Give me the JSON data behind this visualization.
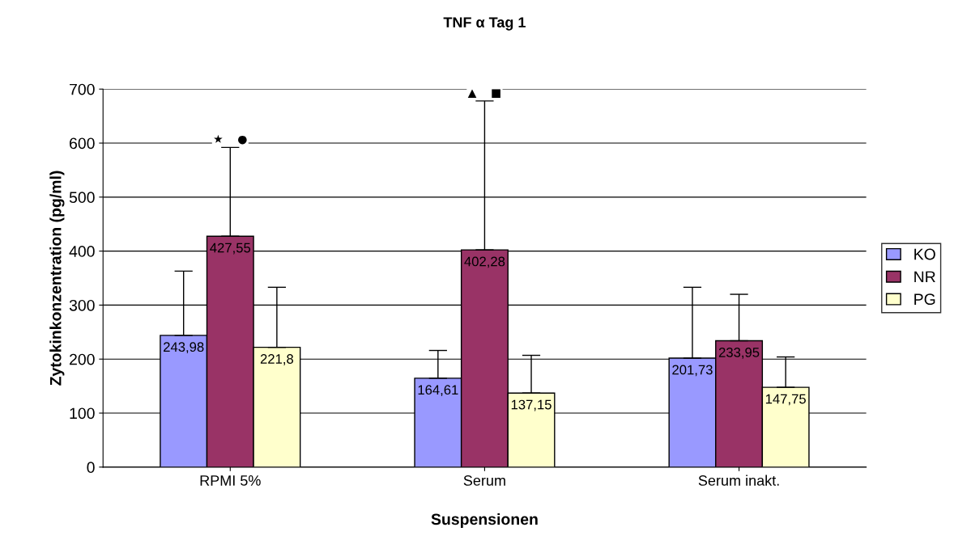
{
  "chart_data": {
    "type": "bar",
    "title": "TNF α Tag 1",
    "xlabel": "Suspensionen",
    "ylabel": "Zytokinkonzentration (pg/ml)",
    "categories": [
      "RPMI 5%",
      "Serum",
      "Serum inakt."
    ],
    "series": [
      {
        "name": "KO",
        "color": "#9999ff",
        "values": [
          243.98,
          164.61,
          201.73
        ],
        "value_labels": [
          "243,98",
          "164,61",
          "201,73"
        ],
        "errors": [
          [
            243.98,
            363
          ],
          [
            164.61,
            216
          ],
          [
            201.73,
            333
          ]
        ]
      },
      {
        "name": "NR",
        "color": "#993366",
        "values": [
          427.55,
          402.28,
          233.95
        ],
        "value_labels": [
          "427,55",
          "402,28",
          "233,95"
        ],
        "errors": [
          [
            427.55,
            592
          ],
          [
            402.28,
            678
          ],
          [
            233.95,
            320
          ]
        ]
      },
      {
        "name": "PG",
        "color": "#ffffcc",
        "values": [
          221.8,
          137.15,
          147.75
        ],
        "value_labels": [
          "221,8",
          "137,15",
          "147,75"
        ],
        "errors": [
          [
            221.8,
            333
          ],
          [
            137.15,
            207
          ],
          [
            147.75,
            204
          ]
        ]
      }
    ],
    "annotations": [
      "★    ●",
      "▲    ■"
    ],
    "ylim": [
      0,
      700
    ],
    "yticks": [
      0,
      100,
      200,
      300,
      400,
      500,
      600,
      700
    ],
    "grid": "y",
    "legend": "right"
  }
}
